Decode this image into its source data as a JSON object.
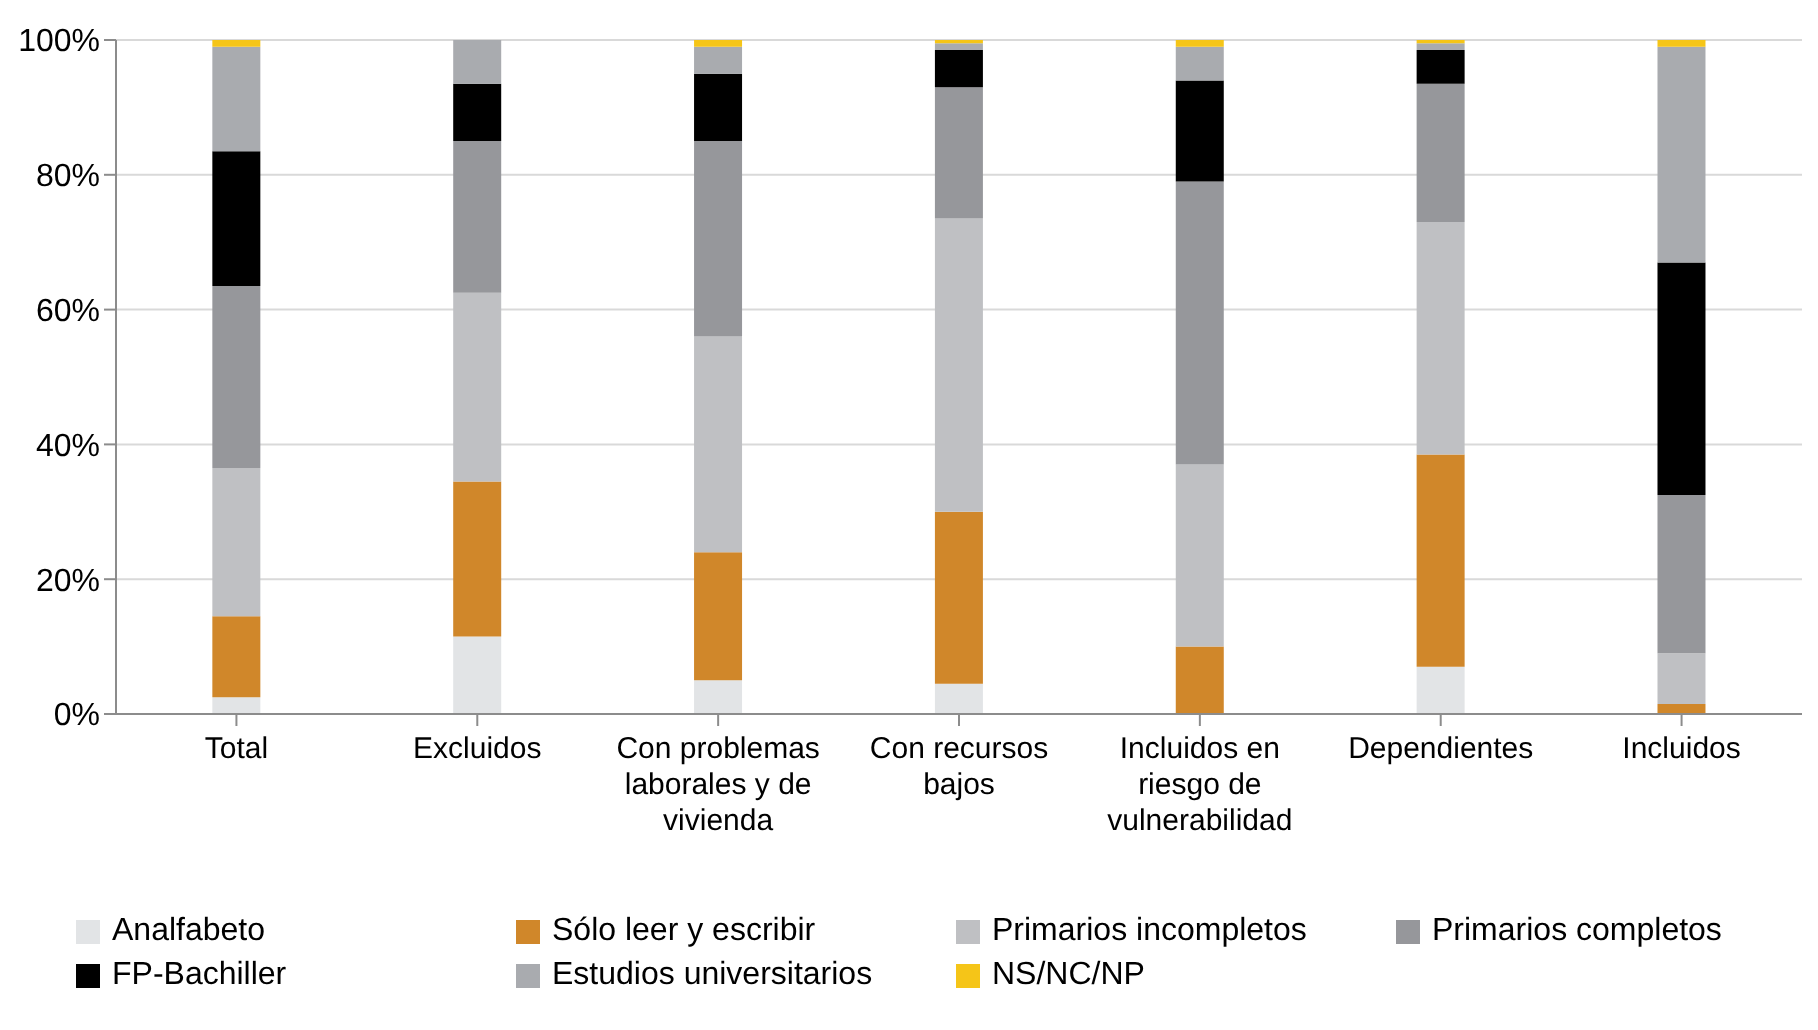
{
  "chart_data": {
    "type": "bar",
    "stacked": true,
    "categories": [
      "Total",
      "Excluidos",
      "Con problemas laborales y de vivienda",
      "Con recursos bajos",
      "Incluidos en riesgo de vulnerabilidad",
      "Dependientes",
      "Incluidos"
    ],
    "series": [
      {
        "name": "Analfabeto",
        "color": "#e2e4e6",
        "values": [
          2.5,
          11.5,
          5,
          4.5,
          0,
          7,
          0
        ]
      },
      {
        "name": "Sólo leer y escribir",
        "color": "#d0872a",
        "values": [
          12,
          23,
          19,
          25.5,
          10,
          31.5,
          1.5
        ]
      },
      {
        "name": "Primarios incompletos",
        "color": "#bfc0c3",
        "values": [
          22,
          28,
          32,
          43.5,
          27,
          34.5,
          7.5
        ]
      },
      {
        "name": "Primarios completos",
        "color": "#96979b",
        "values": [
          27,
          22.5,
          29,
          19.5,
          42,
          20.5,
          23.5
        ]
      },
      {
        "name": "FP-Bachiller",
        "color": "#000000",
        "values": [
          20,
          8.5,
          10,
          5.5,
          15,
          5,
          34.5
        ]
      },
      {
        "name": "Estudios universitarios",
        "color": "#a9abaf",
        "values": [
          15.5,
          6.5,
          4,
          1,
          5,
          1,
          32
        ]
      },
      {
        "name": "NS/NC/NP",
        "color": "#f5c518",
        "values": [
          1,
          0,
          1,
          0.5,
          1,
          0.5,
          1
        ]
      }
    ],
    "ylim": [
      0,
      100
    ],
    "yticks": [
      {
        "value": 0,
        "label": "0%"
      },
      {
        "value": 20,
        "label": "20%"
      },
      {
        "value": 40,
        "label": "40%"
      },
      {
        "value": 60,
        "label": "60%"
      },
      {
        "value": 80,
        "label": "80%"
      },
      {
        "value": 100,
        "label": "100%"
      }
    ],
    "grid": "y",
    "legend": "bottom"
  }
}
